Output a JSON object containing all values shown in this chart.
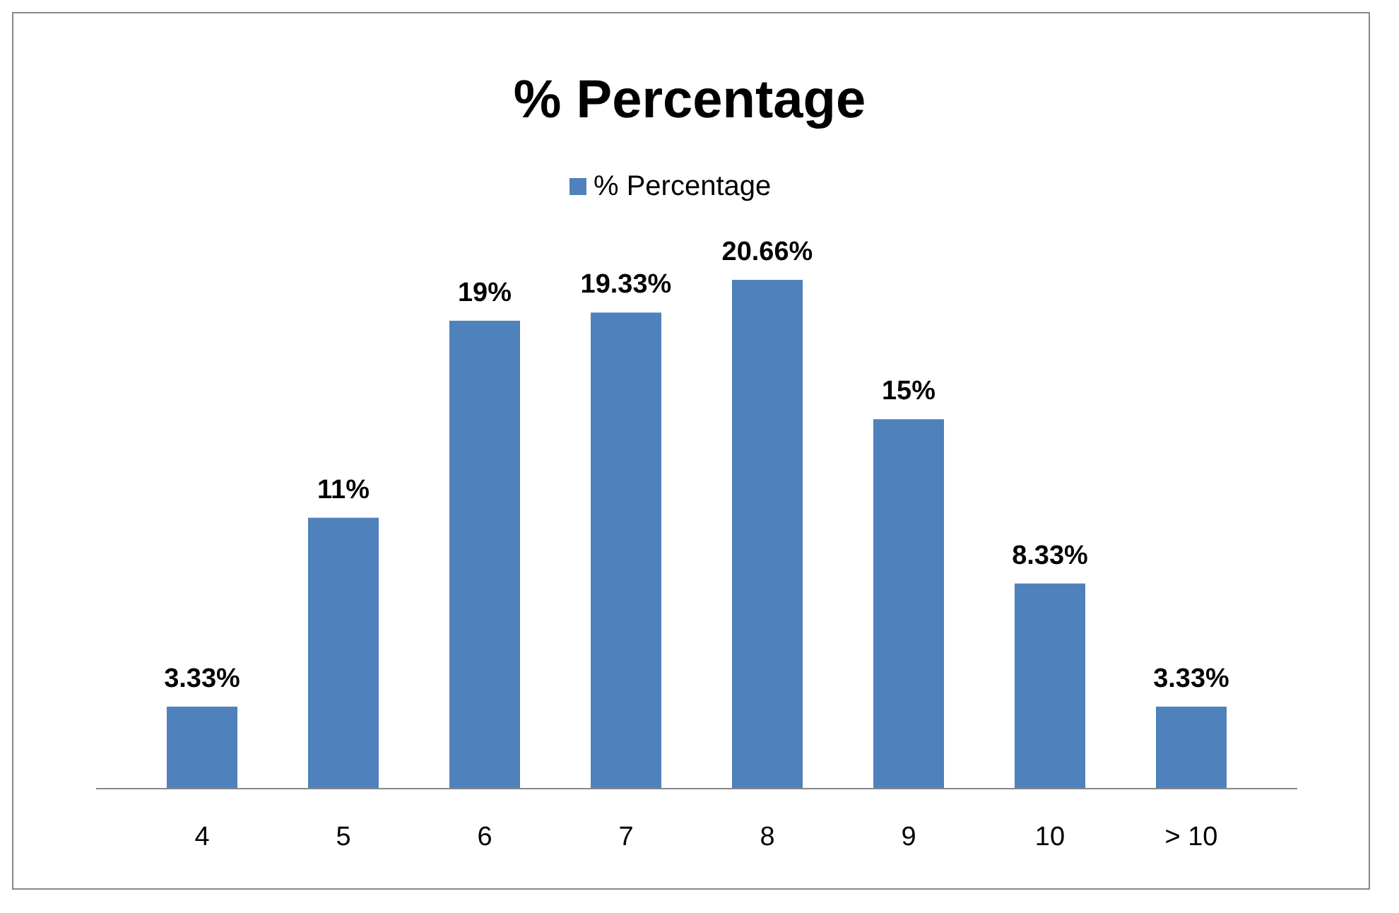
{
  "chart_data": {
    "type": "bar",
    "title": "% Percentage",
    "categories": [
      "4",
      "5",
      "6",
      "7",
      "8",
      "9",
      "10",
      "> 10"
    ],
    "series": [
      {
        "name": "% Percentage",
        "color": "#4f81bd",
        "values": [
          3.33,
          11,
          19,
          19.33,
          20.66,
          15,
          8.33,
          3.33
        ],
        "value_labels": [
          "3.33%",
          "11%",
          "19%",
          "19.33%",
          "20.66%",
          "15%",
          "8.33%",
          "3.33%"
        ]
      }
    ],
    "legend": "top"
  }
}
